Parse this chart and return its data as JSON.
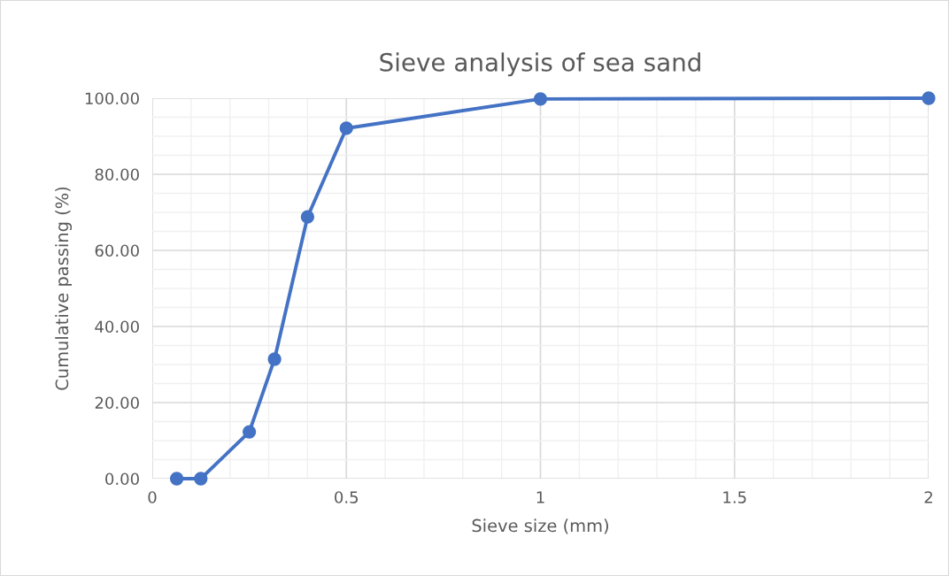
{
  "chart_data": {
    "type": "line",
    "title": "Sieve analysis of sea sand",
    "xlabel": "Sieve size (mm)",
    "ylabel": "Cumulative passing (%)",
    "x": [
      0.063,
      0.125,
      0.25,
      0.315,
      0.4,
      0.5,
      1,
      2
    ],
    "series": [
      {
        "color": "#4472c4",
        "values": [
          0,
          0,
          12.3,
          31.4,
          68.8,
          92.1,
          99.8,
          100
        ]
      }
    ],
    "line_style": "solid",
    "marker": "circle",
    "grid": true,
    "xlim": [
      0,
      2
    ],
    "ylim": [
      0,
      100
    ],
    "xticks": [
      0,
      {
        "value": 0.1,
        "label": null
      },
      {
        "value": 0.2,
        "label": null
      },
      {
        "value": 0.3,
        "label": null
      },
      {
        "value": 0.4,
        "label": null
      },
      0.5,
      {
        "value": 0.6,
        "label": null
      },
      {
        "value": 0.7,
        "label": null
      },
      {
        "value": 0.8,
        "label": null
      },
      {
        "value": 0.9,
        "label": null
      },
      1,
      {
        "value": 1.1,
        "label": null
      },
      {
        "value": 1.2,
        "label": null
      },
      {
        "value": 1.3,
        "label": null
      },
      {
        "value": 1.4,
        "label": null
      },
      1.5,
      {
        "value": 1.6,
        "label": null
      },
      {
        "value": 1.7,
        "label": null
      },
      {
        "value": 1.8,
        "label": null
      },
      {
        "value": 1.9,
        "label": null
      },
      2
    ],
    "yticks": [
      {
        "value": 0,
        "label": "0.00"
      },
      {
        "value": 5,
        "label": null
      },
      {
        "value": 10,
        "label": null
      },
      {
        "value": 15,
        "label": null
      },
      {
        "value": 20,
        "label": "20.00"
      },
      {
        "value": 25,
        "label": null
      },
      {
        "value": 30,
        "label": null
      },
      {
        "value": 35,
        "label": null
      },
      {
        "value": 40,
        "label": "40.00"
      },
      {
        "value": 45,
        "label": null
      },
      {
        "value": 50,
        "label": null
      },
      {
        "value": 55,
        "label": null
      },
      {
        "value": 60,
        "label": "60.00"
      },
      {
        "value": 65,
        "label": null
      },
      {
        "value": 70,
        "label": null
      },
      {
        "value": 75,
        "label": null
      },
      {
        "value": 80,
        "label": "80.00"
      },
      {
        "value": 85,
        "label": null
      },
      {
        "value": 90,
        "label": null
      },
      {
        "value": 95,
        "label": null
      },
      {
        "value": 100,
        "label": "100.00"
      }
    ]
  }
}
